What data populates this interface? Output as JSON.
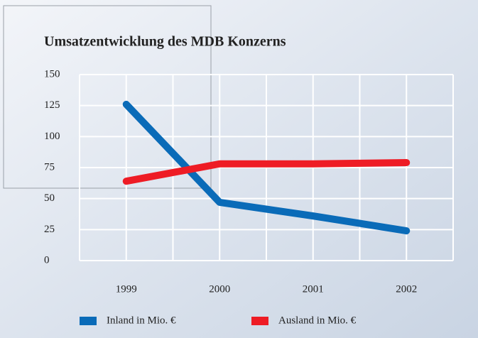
{
  "chart_data": {
    "type": "line",
    "title": "Umsatzentwicklung des MDB Konzerns",
    "categories": [
      "1999",
      "2000",
      "2001",
      "2002"
    ],
    "series": [
      {
        "name": "Inland in Mio. €",
        "color": "#0a6bb8",
        "values": [
          126,
          47,
          36,
          24
        ]
      },
      {
        "name": "Ausland in Mio. €",
        "color": "#ee1c25",
        "values": [
          64,
          78,
          78,
          79
        ]
      }
    ],
    "ylim": [
      0,
      150
    ],
    "yticks": [
      0,
      25,
      50,
      75,
      100,
      125,
      150
    ],
    "grid": true
  }
}
